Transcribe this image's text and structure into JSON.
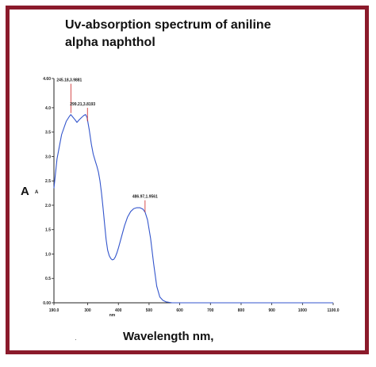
{
  "title_lines": [
    "Uv-absorption spectrum of aniline",
    "alpha naphthol"
  ],
  "ylabel_main": "A",
  "ylabel_sub": "A",
  "xlabel_unit": "nm",
  "xlabel": "Wavelength nm,",
  "colors": {
    "frame": "#8b1a2b",
    "curve": "#3355cc",
    "annotation": "#cc2222",
    "axis": "#222222"
  },
  "chart_data": {
    "type": "line",
    "title": "Uv-absorption spectrum of aniline alpha naphthol",
    "xlabel": "nm",
    "ylabel": "A",
    "xlim": [
      190.0,
      1100.0
    ],
    "ylim": [
      0.0,
      4.6
    ],
    "grid": false,
    "x_ticks": [
      190,
      300,
      400,
      500,
      600,
      700,
      800,
      900,
      1000,
      1100
    ],
    "x_tick_labels": [
      "190.0",
      "300",
      "400",
      "500",
      "600",
      "700",
      "800",
      "900",
      "1000",
      "1100.0"
    ],
    "y_ticks": [
      0.0,
      0.5,
      1.0,
      1.5,
      2.0,
      2.5,
      3.0,
      3.5,
      4.0,
      4.6
    ],
    "y_tick_labels": [
      "0.00",
      "0.5",
      "1.0",
      "1.5",
      "2.0",
      "2.5",
      "3.0",
      "3.5",
      "4.0",
      "4.60"
    ],
    "series": [
      {
        "x": [
          190,
          200,
          215,
          230,
          240,
          245,
          250,
          258,
          265,
          272,
          280,
          287,
          293,
          298,
          305,
          312,
          318,
          325,
          330,
          335,
          340,
          345,
          350,
          355,
          360,
          365,
          370,
          375,
          380,
          385,
          390,
          395,
          400,
          410,
          420,
          430,
          440,
          450,
          460,
          470,
          480,
          487,
          495,
          505,
          515,
          525,
          535,
          545,
          555,
          565,
          575,
          590,
          620,
          700,
          800,
          900,
          1000,
          1100
        ],
        "y": [
          2.35,
          2.95,
          3.45,
          3.72,
          3.82,
          3.86,
          3.82,
          3.76,
          3.7,
          3.75,
          3.8,
          3.84,
          3.86,
          3.8,
          3.55,
          3.25,
          3.05,
          2.9,
          2.8,
          2.68,
          2.5,
          2.25,
          1.95,
          1.62,
          1.3,
          1.08,
          0.97,
          0.91,
          0.88,
          0.89,
          0.94,
          1.02,
          1.12,
          1.35,
          1.58,
          1.76,
          1.87,
          1.93,
          1.95,
          1.95,
          1.92,
          1.86,
          1.7,
          1.32,
          0.8,
          0.34,
          0.12,
          0.05,
          0.02,
          0.01,
          0.0,
          0.0,
          0.0,
          0.0,
          0.0,
          0.0,
          0.0,
          0.0
        ]
      }
    ],
    "annotations": [
      {
        "x": 245.18,
        "y": 3.9881,
        "label": "245.18,3.9881"
      },
      {
        "x": 299.21,
        "y": 3.8193,
        "label": "299.21,3.8193"
      },
      {
        "x": 486.97,
        "y": 1.9561,
        "label": "486.97,1.9561"
      }
    ]
  }
}
